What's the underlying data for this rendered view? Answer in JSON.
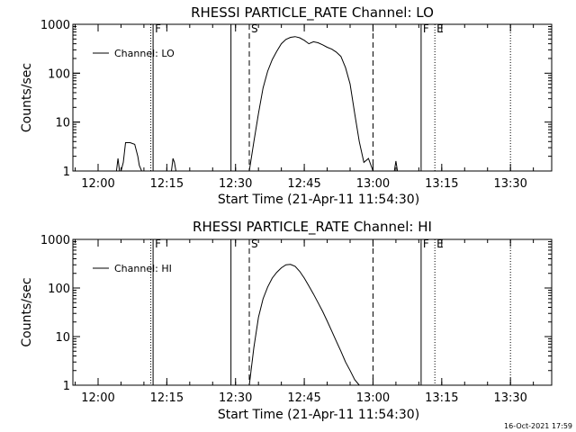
{
  "footer_stamp": "16-Oct-2021 17:59",
  "chart_data": [
    {
      "type": "line",
      "title": "RHESSI PARTICLE_RATE Channel: LO",
      "xlabel": "Start Time (21-Apr-11 11:54:30)",
      "ylabel": "Counts/sec",
      "legend": "Channel: LO",
      "legend_position": "top-left",
      "y_scale": "log",
      "ylim": [
        1,
        1000
      ],
      "y_ticks": [
        "1",
        "10",
        "100",
        "1000"
      ],
      "xlim": [
        "11:54:30",
        "13:39:00"
      ],
      "x_ticks": [
        "12:00",
        "12:15",
        "12:30",
        "12:45",
        "13:00",
        "13:15",
        "13:30"
      ],
      "markers": [
        {
          "label": "F",
          "time": "12:12:00",
          "style": "solid"
        },
        {
          "label": "",
          "time": "12:11:30",
          "style": "dotted"
        },
        {
          "label": "",
          "time": "12:29:00",
          "style": "solid"
        },
        {
          "label": "S",
          "time": "12:33:00",
          "style": "dashed"
        },
        {
          "label": "",
          "time": "13:00:00",
          "style": "dashed"
        },
        {
          "label": "F",
          "time": "13:10:30",
          "style": "solid"
        },
        {
          "label": "E",
          "time": "13:13:30",
          "style": "dotted"
        },
        {
          "label": "",
          "time": "13:30:00",
          "style": "dotted"
        }
      ],
      "series": [
        {
          "x": [
            "12:04:00",
            "12:04:20",
            "12:04:40",
            "12:05:00",
            "12:05:30",
            "12:06:00",
            "12:07:00",
            "12:08:00",
            "12:08:40",
            "12:09:00",
            "12:09:30",
            "12:16:00",
            "12:16:20",
            "12:16:40",
            "12:17:00",
            "12:33:00",
            "12:34:00",
            "12:35:00",
            "12:36:00",
            "12:37:00",
            "12:38:00",
            "12:39:00",
            "12:40:00",
            "12:41:00",
            "12:42:00",
            "12:43:00",
            "12:44:00",
            "12:45:00",
            "12:46:00",
            "12:47:00",
            "12:48:00",
            "12:49:00",
            "12:50:00",
            "12:51:00",
            "12:52:00",
            "12:53:00",
            "12:54:00",
            "12:55:00",
            "12:56:00",
            "12:57:00",
            "12:58:00",
            "12:59:00",
            "13:00:00",
            "13:04:40",
            "13:05:00",
            "13:05:20"
          ],
          "y": [
            1,
            1.8,
            1,
            1,
            1.5,
            3.8,
            3.8,
            3.5,
            2.0,
            1.3,
            1,
            1,
            1.8,
            1.5,
            1,
            1,
            4,
            15,
            50,
            110,
            190,
            280,
            400,
            490,
            540,
            560,
            530,
            470,
            400,
            440,
            420,
            380,
            340,
            310,
            270,
            220,
            130,
            60,
            15,
            4,
            1.5,
            1.8,
            1,
            1,
            1.6,
            1
          ]
        }
      ]
    },
    {
      "type": "line",
      "title": "RHESSI PARTICLE_RATE Channel: HI",
      "xlabel": "Start Time (21-Apr-11 11:54:30)",
      "ylabel": "Counts/sec",
      "legend": "Channel: HI",
      "legend_position": "top-left",
      "y_scale": "log",
      "ylim": [
        1,
        1000
      ],
      "y_ticks": [
        "1",
        "10",
        "100",
        "1000"
      ],
      "xlim": [
        "11:54:30",
        "13:39:00"
      ],
      "x_ticks": [
        "12:00",
        "12:15",
        "12:30",
        "12:45",
        "13:00",
        "13:15",
        "13:30"
      ],
      "markers": [
        {
          "label": "F",
          "time": "12:12:00",
          "style": "solid"
        },
        {
          "label": "",
          "time": "12:11:30",
          "style": "dotted"
        },
        {
          "label": "",
          "time": "12:29:00",
          "style": "solid"
        },
        {
          "label": "S",
          "time": "12:33:00",
          "style": "dashed"
        },
        {
          "label": "",
          "time": "13:00:00",
          "style": "dashed"
        },
        {
          "label": "F",
          "time": "13:10:30",
          "style": "solid"
        },
        {
          "label": "E",
          "time": "13:13:30",
          "style": "dotted"
        },
        {
          "label": "",
          "time": "13:30:00",
          "style": "dotted"
        }
      ],
      "series": [
        {
          "x": [
            "12:33:00",
            "12:34:00",
            "12:35:00",
            "12:36:00",
            "12:37:00",
            "12:38:00",
            "12:39:00",
            "12:40:00",
            "12:41:00",
            "12:42:00",
            "12:43:00",
            "12:44:00",
            "12:45:00",
            "12:46:00",
            "12:47:00",
            "12:48:00",
            "12:49:00",
            "12:50:00",
            "12:51:00",
            "12:52:00",
            "12:53:00",
            "12:54:00",
            "12:55:00",
            "12:56:00",
            "12:57:00"
          ],
          "y": [
            1,
            6,
            25,
            60,
            105,
            160,
            210,
            260,
            300,
            305,
            280,
            220,
            160,
            110,
            75,
            50,
            33,
            21,
            13,
            8,
            5,
            3,
            2,
            1.3,
            1
          ]
        }
      ]
    }
  ]
}
